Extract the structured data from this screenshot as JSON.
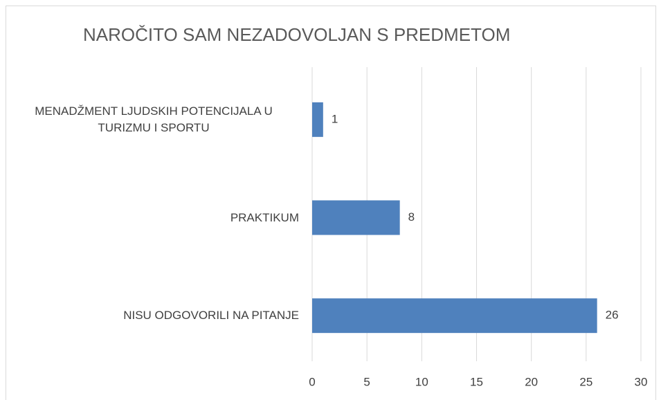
{
  "chart_data": {
    "type": "bar",
    "orientation": "horizontal",
    "title": "NAROČITO SAM NEZADOVOLJAN S PREDMETOM",
    "categories": [
      "MENADŽMENT LJUDSKIH POTENCIJALA U TURIZMU I SPORTU",
      "PRAKTIKUM",
      "NISU ODGOVORILI NA PITANJE"
    ],
    "values": [
      1,
      8,
      26
    ],
    "color": "#4f81bd",
    "xlim": [
      0,
      30
    ],
    "xticks": [
      0,
      5,
      10,
      15,
      20,
      25,
      30
    ],
    "grid": true
  }
}
